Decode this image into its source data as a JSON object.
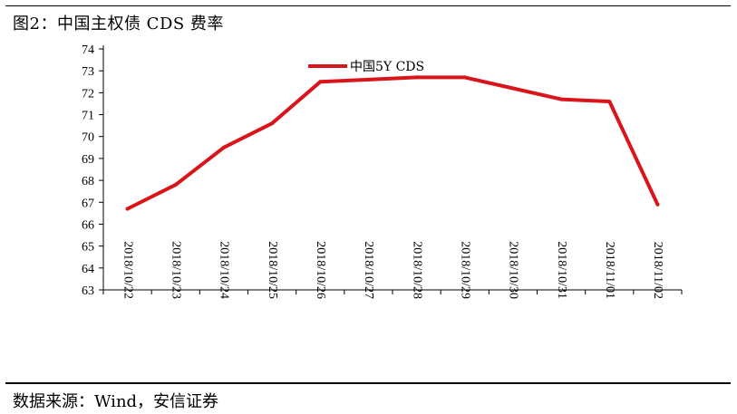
{
  "figure": {
    "title": "图2：中国主权债 CDS 费率",
    "source": "数据来源：Wind，安信证券"
  },
  "chart_data": {
    "type": "line",
    "title": "图2：中国主权债 CDS 费率",
    "xlabel": "",
    "ylabel": "",
    "categories": [
      "2018/10/22",
      "2018/10/23",
      "2018/10/24",
      "2018/10/25",
      "2018/10/26",
      "2018/10/27",
      "2018/10/28",
      "2018/10/29",
      "2018/10/30",
      "2018/10/31",
      "2018/11/01",
      "2018/11/02"
    ],
    "series": [
      {
        "name": "中国5Y CDS",
        "color": "#d9141b",
        "values": [
          66.7,
          67.8,
          69.5,
          70.6,
          72.5,
          72.6,
          72.7,
          72.7,
          72.2,
          71.7,
          71.6,
          66.9
        ]
      }
    ],
    "ylim": [
      63,
      74
    ],
    "yticks": [
      63,
      64,
      65,
      66,
      67,
      68,
      69,
      70,
      71,
      72,
      73,
      74
    ],
    "grid": false,
    "legend_position": "top-center"
  }
}
